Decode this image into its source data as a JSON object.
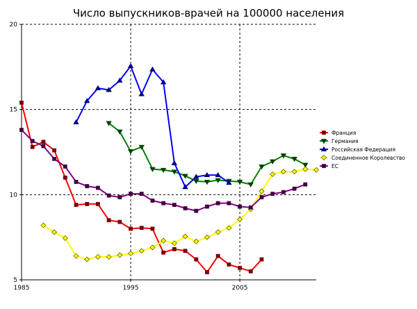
{
  "chart_data": {
    "type": "line",
    "title": "Число выпускников-врачей на 100000 населения",
    "xlabel": "",
    "ylabel": "",
    "xlim": [
      1985,
      2012
    ],
    "ylim": [
      5,
      20
    ],
    "x_ticks": [
      "1985",
      "1995",
      "2005"
    ],
    "y_ticks": [
      "5",
      "10",
      "15",
      "20"
    ],
    "grid": "dashed at x=1995, 2005 and y=10, 15, 20",
    "legend_position": "right",
    "series": [
      {
        "name": "Франция",
        "color": "#ff0000",
        "marker": "square",
        "marker_color": "#7a0000",
        "points": [
          [
            1985,
            15.4
          ],
          [
            1986,
            12.8
          ],
          [
            1987,
            13.1
          ],
          [
            1988,
            12.6
          ],
          [
            1989,
            11.0
          ],
          [
            1990,
            9.4
          ],
          [
            1991,
            9.45
          ],
          [
            1992,
            9.45
          ],
          [
            1993,
            8.5
          ],
          [
            1994,
            8.4
          ],
          [
            1995,
            8.0
          ],
          [
            1996,
            8.05
          ],
          [
            1997,
            8.0
          ],
          [
            1998,
            6.6
          ],
          [
            1999,
            6.8
          ],
          [
            2000,
            6.7
          ],
          [
            2001,
            6.2
          ],
          [
            2002,
            5.45
          ],
          [
            2003,
            6.4
          ],
          [
            2004,
            5.9
          ],
          [
            2005,
            5.7
          ],
          [
            2006,
            5.5
          ],
          [
            2007,
            6.2
          ]
        ]
      },
      {
        "name": "Германия",
        "color": "#008000",
        "marker": "triangle-down",
        "marker_color": "#004000",
        "points": [
          [
            1993,
            14.2
          ],
          [
            1994,
            13.7
          ],
          [
            1995,
            12.55
          ],
          [
            1996,
            12.8
          ],
          [
            1997,
            11.5
          ],
          [
            1998,
            11.45
          ],
          [
            1999,
            11.35
          ],
          [
            2000,
            11.1
          ],
          [
            2001,
            10.8
          ],
          [
            2002,
            10.75
          ],
          [
            2003,
            10.85
          ],
          [
            2004,
            10.8
          ],
          [
            2005,
            10.75
          ],
          [
            2006,
            10.6
          ],
          [
            2007,
            11.65
          ],
          [
            2008,
            11.95
          ],
          [
            2009,
            12.3
          ],
          [
            2010,
            12.1
          ],
          [
            2011,
            11.75
          ]
        ]
      },
      {
        "name": "Российская Федерация",
        "color": "#0000ff",
        "marker": "triangle-up",
        "marker_color": "#000080",
        "points": [
          [
            1990,
            14.25
          ],
          [
            1991,
            15.5
          ],
          [
            1992,
            16.25
          ],
          [
            1993,
            16.15
          ],
          [
            1994,
            16.7
          ],
          [
            1995,
            17.55
          ],
          [
            1996,
            15.9
          ],
          [
            1997,
            17.35
          ],
          [
            1998,
            16.6
          ],
          [
            1999,
            11.85
          ],
          [
            2000,
            10.45
          ],
          [
            2001,
            11.05
          ],
          [
            2002,
            11.15
          ],
          [
            2003,
            11.15
          ],
          [
            2004,
            10.7
          ]
        ]
      },
      {
        "name": "Соединенное Королевство",
        "color": "#ffff00",
        "marker": "diamond",
        "marker_color": "#606000",
        "points": [
          [
            1987,
            8.2
          ],
          [
            1988,
            7.8
          ],
          [
            1989,
            7.45
          ],
          [
            1990,
            6.4
          ],
          [
            1991,
            6.2
          ],
          [
            1992,
            6.35
          ],
          [
            1993,
            6.35
          ],
          [
            1994,
            6.45
          ],
          [
            1995,
            6.55
          ],
          [
            1996,
            6.7
          ],
          [
            1997,
            6.9
          ],
          [
            1998,
            7.3
          ],
          [
            1999,
            7.15
          ],
          [
            2000,
            7.55
          ],
          [
            2001,
            7.25
          ],
          [
            2002,
            7.5
          ],
          [
            2003,
            7.8
          ],
          [
            2004,
            8.05
          ],
          [
            2005,
            8.55
          ],
          [
            2006,
            9.15
          ],
          [
            2007,
            10.2
          ],
          [
            2008,
            11.2
          ],
          [
            2009,
            11.35
          ],
          [
            2010,
            11.35
          ],
          [
            2011,
            11.5
          ],
          [
            2012,
            11.45
          ]
        ]
      },
      {
        "name": "ЕС",
        "color": "#800080",
        "marker": "square",
        "marker_color": "#400040",
        "points": [
          [
            1985,
            13.8
          ],
          [
            1986,
            13.15
          ],
          [
            1987,
            12.85
          ],
          [
            1988,
            12.1
          ],
          [
            1989,
            11.65
          ],
          [
            1990,
            10.75
          ],
          [
            1991,
            10.5
          ],
          [
            1992,
            10.4
          ],
          [
            1993,
            9.95
          ],
          [
            1994,
            9.85
          ],
          [
            1995,
            10.05
          ],
          [
            1996,
            10.05
          ],
          [
            1997,
            9.65
          ],
          [
            1998,
            9.5
          ],
          [
            1999,
            9.4
          ],
          [
            2000,
            9.2
          ],
          [
            2001,
            9.05
          ],
          [
            2002,
            9.3
          ],
          [
            2003,
            9.5
          ],
          [
            2004,
            9.5
          ],
          [
            2005,
            9.3
          ],
          [
            2006,
            9.25
          ],
          [
            2007,
            9.85
          ],
          [
            2008,
            10.05
          ],
          [
            2009,
            10.15
          ],
          [
            2010,
            10.35
          ],
          [
            2011,
            10.6
          ]
        ]
      }
    ]
  }
}
